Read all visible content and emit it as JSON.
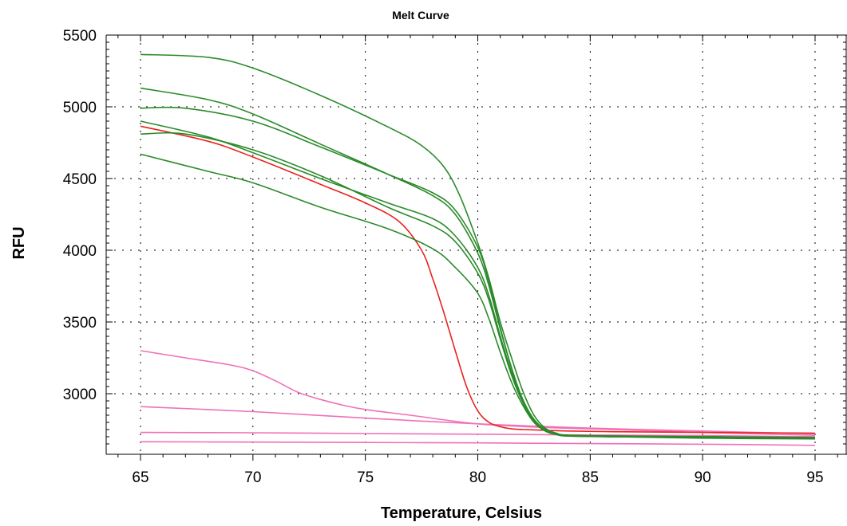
{
  "chart_data": {
    "type": "line",
    "title": "Melt Curve",
    "xlabel": "Temperature, Celsius",
    "ylabel": "RFU",
    "xlim": [
      65,
      95
    ],
    "ylim": [
      2600,
      5500
    ],
    "xticks": [
      "65",
      "70",
      "75",
      "80",
      "85",
      "90",
      "95"
    ],
    "yticks": [
      "3000",
      "3500",
      "4000",
      "4500",
      "5000",
      "5500"
    ],
    "grid": true,
    "legend": "none",
    "colors": {
      "green": "#2a8a2a",
      "red": "#e8231e",
      "pink": "#f070b8"
    },
    "series": [
      {
        "color": "green",
        "x": [
          65,
          68,
          70,
          73,
          76,
          77.5,
          78.5,
          79.2,
          80,
          80.5,
          81,
          81.5,
          82,
          82.5,
          83,
          83.5,
          84,
          86,
          90,
          95
        ],
        "y": [
          5365,
          5345,
          5270,
          5080,
          4860,
          4730,
          4580,
          4380,
          4050,
          3800,
          3500,
          3250,
          3020,
          2850,
          2760,
          2725,
          2710,
          2705,
          2700,
          2695
        ]
      },
      {
        "color": "green",
        "x": [
          65,
          68,
          70,
          73,
          76,
          78,
          79,
          80,
          80.5,
          81,
          81.5,
          82,
          82.5,
          83,
          83.5,
          84,
          86,
          90,
          95
        ],
        "y": [
          5130,
          5050,
          4950,
          4740,
          4530,
          4380,
          4250,
          3980,
          3750,
          3450,
          3180,
          2960,
          2820,
          2750,
          2720,
          2710,
          2705,
          2700,
          2695
        ]
      },
      {
        "color": "green",
        "x": [
          65,
          67,
          70,
          73,
          76,
          78,
          79,
          80,
          80.5,
          81,
          81.5,
          82,
          82.5,
          83,
          83.5,
          84,
          86,
          90,
          95
        ],
        "y": [
          4990,
          4990,
          4900,
          4720,
          4530,
          4400,
          4280,
          4020,
          3780,
          3460,
          3180,
          2960,
          2820,
          2750,
          2720,
          2710,
          2700,
          2700,
          2690
        ]
      },
      {
        "color": "green",
        "x": [
          65,
          68,
          70,
          73,
          76,
          78,
          79,
          80,
          80.5,
          81,
          81.5,
          82,
          82.5,
          83,
          83.5,
          84,
          86,
          90,
          95
        ],
        "y": [
          4900,
          4790,
          4680,
          4500,
          4330,
          4220,
          4100,
          3880,
          3680,
          3400,
          3150,
          2950,
          2820,
          2750,
          2720,
          2710,
          2700,
          2700,
          2690
        ]
      },
      {
        "color": "green",
        "x": [
          65,
          67,
          70,
          73,
          76,
          78,
          79,
          80,
          80.5,
          81,
          81.5,
          82,
          82.5,
          83,
          83.5,
          84,
          86,
          90,
          95
        ],
        "y": [
          4810,
          4810,
          4700,
          4520,
          4300,
          4170,
          4060,
          3840,
          3650,
          3380,
          3130,
          2940,
          2810,
          2740,
          2715,
          2705,
          2700,
          2695,
          2690
        ]
      },
      {
        "color": "green",
        "x": [
          65,
          68,
          70,
          73,
          76,
          78,
          79,
          80,
          80.5,
          81,
          81.5,
          82,
          82.5,
          83,
          83.5,
          84,
          86,
          90,
          95
        ],
        "y": [
          4670,
          4550,
          4470,
          4300,
          4150,
          4010,
          3880,
          3700,
          3520,
          3290,
          3080,
          2920,
          2800,
          2740,
          2715,
          2705,
          2700,
          2690,
          2685
        ]
      },
      {
        "color": "red",
        "x": [
          65,
          68,
          70,
          73,
          75,
          76.5,
          77.5,
          78,
          78.5,
          79,
          79.5,
          80,
          80.5,
          81,
          81.5,
          82,
          83,
          84,
          86,
          90,
          95
        ],
        "y": [
          4865,
          4760,
          4650,
          4460,
          4330,
          4200,
          4000,
          3800,
          3560,
          3300,
          3050,
          2880,
          2800,
          2770,
          2755,
          2750,
          2745,
          2740,
          2735,
          2730,
          2725
        ]
      },
      {
        "color": "pink",
        "x": [
          65,
          67,
          69,
          70,
          71,
          72,
          73,
          74,
          75,
          77,
          80,
          83,
          86,
          90,
          95
        ],
        "y": [
          3300,
          3250,
          3200,
          3160,
          3090,
          3010,
          2960,
          2920,
          2890,
          2850,
          2790,
          2765,
          2750,
          2730,
          2710
        ]
      },
      {
        "color": "pink",
        "x": [
          65,
          70,
          75,
          80,
          85,
          90,
          95
        ],
        "y": [
          2910,
          2875,
          2830,
          2790,
          2760,
          2740,
          2720
        ]
      },
      {
        "color": "pink",
        "x": [
          65,
          70,
          75,
          80,
          85,
          90,
          95
        ],
        "y": [
          2730,
          2728,
          2722,
          2718,
          2712,
          2708,
          2700
        ]
      },
      {
        "color": "pink",
        "x": [
          65,
          70,
          75,
          80,
          85,
          90,
          95
        ],
        "y": [
          2665,
          2663,
          2660,
          2657,
          2652,
          2648,
          2640
        ]
      }
    ]
  }
}
